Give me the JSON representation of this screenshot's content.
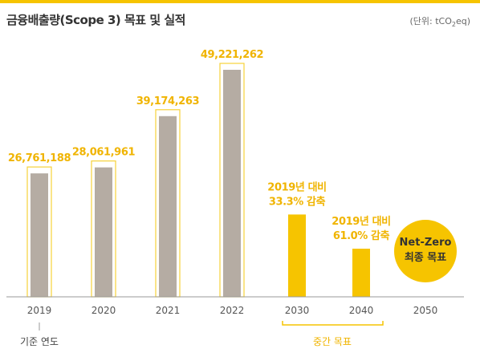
{
  "header": {
    "title": "금융배출량(Scope 3) 목표 및 실적",
    "unit_prefix": "(단위: tCO",
    "unit_sub": "2",
    "unit_suffix": "eq)"
  },
  "colors": {
    "actual_bar": "#b5aca3",
    "target_bar": "#f6c400",
    "label": "#f0b400",
    "frame": "#f6d23a"
  },
  "chart_data": {
    "type": "bar",
    "title": "금융배출량(Scope 3) 목표 및 실적",
    "categories": [
      "2019",
      "2020",
      "2021",
      "2022",
      "2030",
      "2040",
      "2050"
    ],
    "series": [
      {
        "values": [
          26761188,
          28061961,
          39174263,
          49221262,
          17847000,
          10437000,
          0
        ]
      }
    ],
    "value_labels": [
      "26,761,188",
      "28,061,961",
      "39,174,263",
      "49,221,262"
    ],
    "target_labels": {
      "2030": [
        "2019년 대비",
        "33.3% 감축"
      ],
      "2040": [
        "2019년 대비",
        "61.0% 감축"
      ],
      "2050": [
        "Net-Zero",
        "최종 목표"
      ]
    },
    "annotations": {
      "base_year": "기준 연도",
      "interim": "중간 목표"
    },
    "ylim": [
      0,
      52000000
    ]
  }
}
